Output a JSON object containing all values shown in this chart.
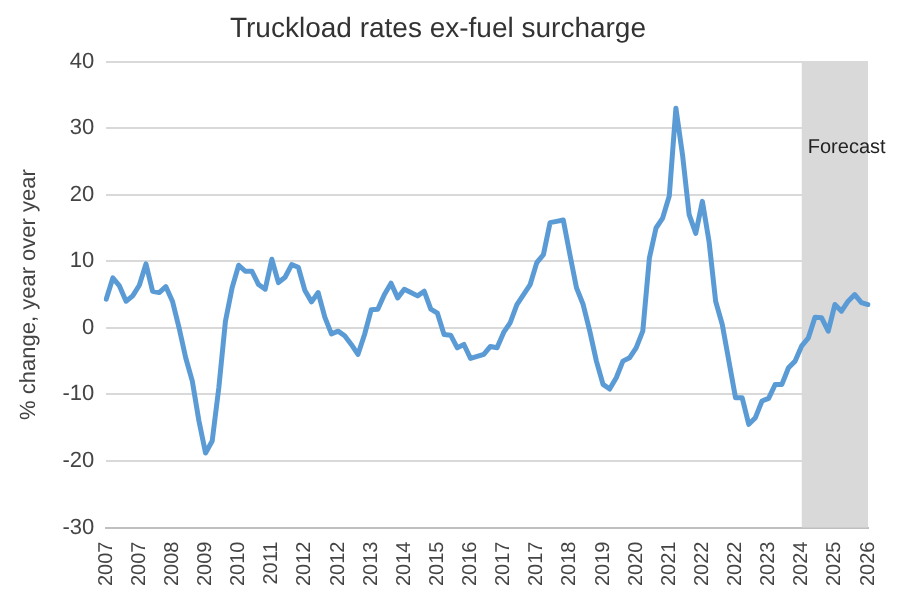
{
  "chart_data": {
    "type": "line",
    "title": "Truckload rates ex-fuel surcharge",
    "ylabel": "% change, year over year",
    "categories": [
      "2007",
      null,
      null,
      null,
      null,
      "2007",
      null,
      null,
      null,
      null,
      "2008",
      null,
      null,
      null,
      null,
      "2009",
      null,
      null,
      null,
      null,
      "2010",
      null,
      null,
      null,
      null,
      "2011",
      null,
      null,
      null,
      null,
      "2012",
      null,
      null,
      null,
      null,
      "2012",
      null,
      null,
      null,
      null,
      "2013",
      null,
      null,
      null,
      null,
      "2014",
      null,
      null,
      null,
      null,
      "2015",
      null,
      null,
      null,
      null,
      "2016",
      null,
      null,
      null,
      null,
      "2017",
      null,
      null,
      null,
      null,
      "2017",
      null,
      null,
      null,
      null,
      "2018",
      null,
      null,
      null,
      null,
      "2019",
      null,
      null,
      null,
      null,
      "2020",
      null,
      null,
      null,
      null,
      "2021",
      null,
      null,
      null,
      null,
      "2022",
      null,
      null,
      null,
      null,
      "2022",
      null,
      null,
      null,
      null,
      "2023",
      null,
      null,
      null,
      null,
      "2024",
      null,
      null,
      null,
      null,
      "2025",
      null,
      null,
      null,
      null,
      "2026"
    ],
    "series": [
      {
        "color": "#5b9bd5",
        "values": [
          4.3,
          7.5,
          6.3,
          4,
          4.8,
          6.4,
          9.6,
          5.5,
          5.3,
          6.2,
          4,
          0,
          -4.5,
          -8,
          -14,
          -18.8,
          -17,
          -9,
          1,
          6,
          9.4,
          8.5,
          8.5,
          6.5,
          5.8,
          10.3,
          6.8,
          7.6,
          9.5,
          9.1,
          5.6,
          3.9,
          5.3,
          1.6,
          -0.9,
          -0.5,
          -1.2,
          -2.5,
          -4,
          -1,
          2.7,
          2.8,
          5,
          6.7,
          4.5,
          5.8,
          5.3,
          4.8,
          5.5,
          2.8,
          2.2,
          -1,
          -1.1,
          -3,
          -2.5,
          -4.6,
          -4.3,
          -4,
          -2.8,
          -3,
          -0.7,
          0.8,
          3.5,
          5,
          6.5,
          9.8,
          11,
          15.8,
          16,
          16.2,
          11,
          6,
          3.5,
          -0.5,
          -5,
          -8.5,
          -9.2,
          -7.5,
          -5,
          -4.5,
          -3,
          -0.5,
          10.5,
          15,
          16.5,
          19.8,
          33,
          26,
          17,
          14.2,
          19,
          13,
          4,
          0.5,
          -5,
          -10.5,
          -10.5,
          -14.5,
          -13.5,
          -11,
          -10.6,
          -8.5,
          -8.5,
          -6,
          -5,
          -2.7,
          -1.5,
          1.6,
          1.5,
          -0.5,
          3.5,
          2.5,
          4,
          5,
          3.8,
          3.5
        ]
      }
    ],
    "ylim": [
      -30,
      40
    ],
    "yticks": [
      -30,
      -20,
      -10,
      0,
      10,
      20,
      30,
      40
    ],
    "grid": "y",
    "legend": false,
    "marker": "none",
    "line_style": "solid",
    "bands": [
      {
        "axis": "x",
        "from": "2024",
        "to": "2026",
        "label": "Forecast",
        "color": "#d9d9d9"
      }
    ]
  }
}
